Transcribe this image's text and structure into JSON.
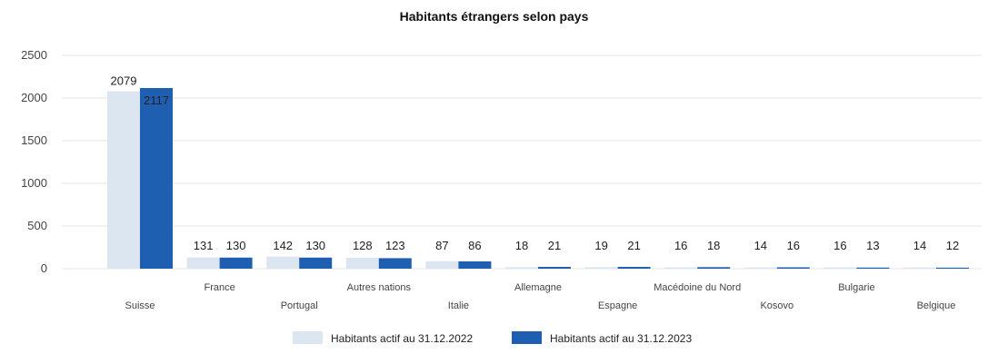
{
  "chart_data": {
    "type": "bar",
    "title": "Habitants étrangers selon pays",
    "xlabel": "",
    "ylabel": "",
    "ylim": [
      0,
      2500
    ],
    "yticks": [
      "0",
      "500",
      "1000",
      "1500",
      "2000",
      "2500"
    ],
    "grid": true,
    "legend_position": "bottom",
    "categories": [
      "Suisse",
      "France",
      "Portugal",
      "Autres nations",
      "Italie",
      "Allemagne",
      "Espagne",
      "Macédoine du Nord",
      "Kosovo",
      "Bulgarie",
      "Belgique"
    ],
    "series": [
      {
        "name": "Habitants actif au 31.12.2022",
        "color": "#dce6f1",
        "values": [
          2079,
          131,
          142,
          128,
          87,
          18,
          19,
          16,
          14,
          16,
          14
        ]
      },
      {
        "name": "Habitants actif au 31.12.2023",
        "color": "#1f5fb2",
        "values": [
          2117,
          130,
          130,
          123,
          86,
          21,
          21,
          18,
          16,
          13,
          12
        ]
      }
    ]
  }
}
